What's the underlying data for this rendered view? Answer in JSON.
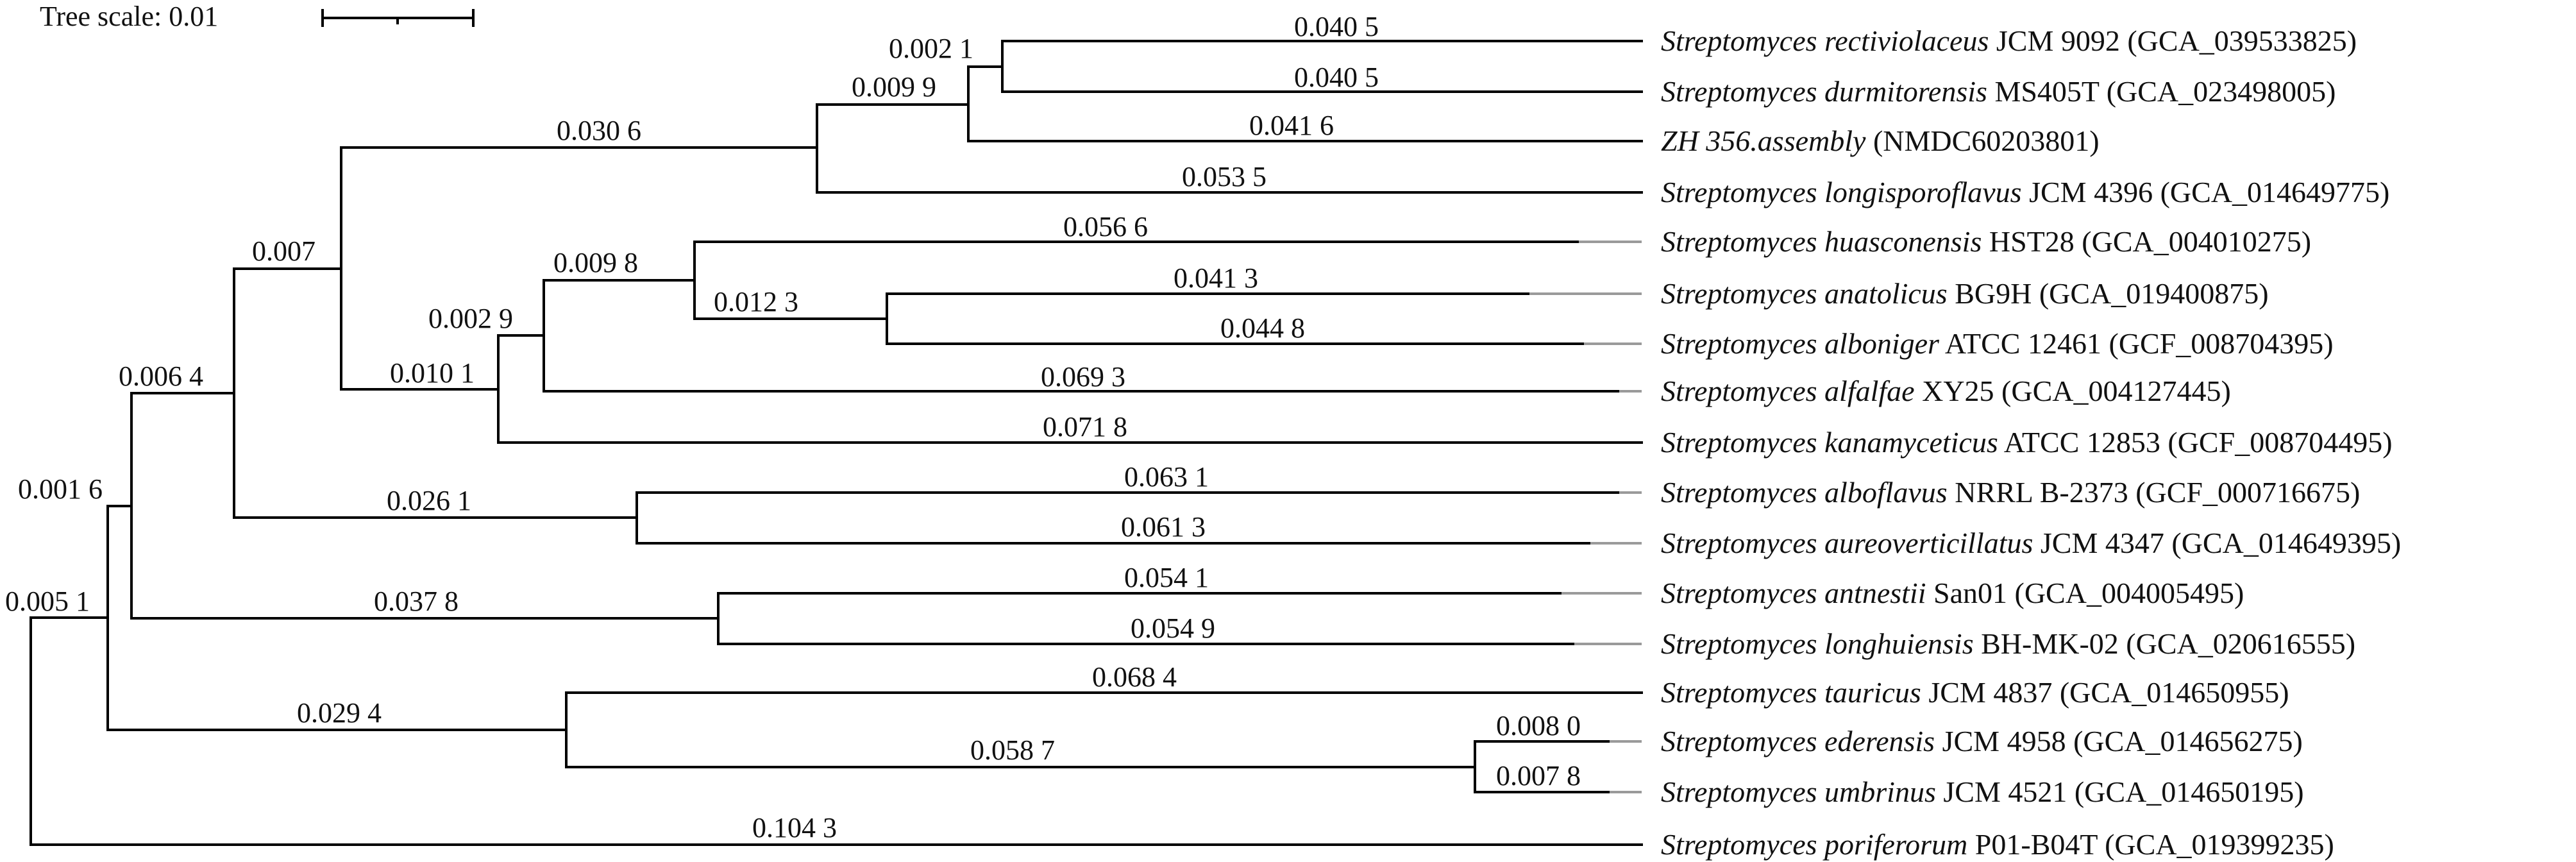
{
  "scale": {
    "label": "Tree scale: 0.01"
  },
  "leaves": [
    {
      "genus": "Streptomyces",
      "species": "rectiviolaceus",
      "strain": "JCM 9092",
      "accession": "(GCA_039533825)"
    },
    {
      "genus": "Streptomyces",
      "species": "durmitorensis",
      "strain": "MS405T",
      "accession": "(GCA_023498005)"
    },
    {
      "genus": "",
      "species": "ZH 356.assembly",
      "strain": "",
      "accession": "(NMDC60203801)"
    },
    {
      "genus": "Streptomyces",
      "species": "longisporoflavus",
      "strain": "JCM 4396",
      "accession": "(GCA_014649775)"
    },
    {
      "genus": "Streptomyces",
      "species": "huasconensis",
      "strain": "HST28",
      "accession": "(GCA_004010275)"
    },
    {
      "genus": "Streptomyces",
      "species": "anatolicus",
      "strain": "BG9H",
      "accession": "(GCA_019400875)"
    },
    {
      "genus": "Streptomyces",
      "species": "alboniger",
      "strain": "ATCC 12461",
      "accession": "(GCF_008704395)"
    },
    {
      "genus": "Streptomyces",
      "species": "alfalfae",
      "strain": "XY25",
      "accession": "(GCA_004127445)"
    },
    {
      "genus": "Streptomyces",
      "species": "kanamyceticus",
      "strain": "ATCC 12853",
      "accession": "(GCF_008704495)"
    },
    {
      "genus": "Streptomyces",
      "species": "alboflavus",
      "strain": "NRRL B-2373",
      "accession": "(GCF_000716675)"
    },
    {
      "genus": "Streptomyces",
      "species": "aureoverticillatus",
      "strain": "JCM 4347",
      "accession": "(GCA_014649395)"
    },
    {
      "genus": "Streptomyces",
      "species": "antnestii",
      "strain": "San01",
      "accession": "(GCA_004005495)"
    },
    {
      "genus": "Streptomyces",
      "species": "longhuiensis",
      "strain": "BH-MK-02",
      "accession": "(GCA_020616555)"
    },
    {
      "genus": "Streptomyces",
      "species": "tauricus",
      "strain": "JCM 4837",
      "accession": "(GCA_014650955)"
    },
    {
      "genus": "Streptomyces",
      "species": "ederensis",
      "strain": "JCM 4958",
      "accession": "(GCA_014656275)"
    },
    {
      "genus": "Streptomyces",
      "species": "umbrinus",
      "strain": "JCM 4521",
      "accession": "(GCA_014650195)"
    },
    {
      "genus": "Streptomyces",
      "species": "poriferorum",
      "strain": "P01-B04T",
      "accession": "(GCA_019399235)"
    }
  ],
  "branch_lengths": {
    "leaf_rectiviolaceus": "0.040 5",
    "leaf_durmitorensis": "0.040 5",
    "node_rect_durm": "0.002 1",
    "leaf_zh356": "0.041 6",
    "node_clade3": "0.009 9",
    "leaf_longisporoflavus": "0.053 5",
    "node_clade4": "0.030 6",
    "leaf_huasconensis": "0.056 6",
    "leaf_anatolicus": "0.041 3",
    "leaf_alboniger": "0.044 8",
    "node_anat_albo": "0.012 3",
    "node_huas_group": "0.009 8",
    "leaf_alfalfae": "0.069 3",
    "node_alfalfae_group": "0.002 9",
    "leaf_kanamyceticus": "0.071 8",
    "node_kanamyceticus_group": "0.010 1",
    "node_big_clade": "0.007",
    "leaf_alboflavus": "0.063 1",
    "leaf_aureoverticillatus": "0.061 3",
    "node_alboflavus_pair": "0.026 1",
    "node_upper_clade": "0.006 4",
    "leaf_antnestii": "0.054 1",
    "leaf_longhuiensis": "0.054 9",
    "node_antnestii_pair": "0.037 8",
    "node_ingroup_upper": "0.001 6",
    "leaf_tauricus": "0.068 4",
    "leaf_ederensis": "0.008 0",
    "leaf_umbrinus": "0.007 8",
    "node_ederensis_pair": "0.058 7",
    "node_tauricus_group": "0.029 4",
    "node_ingroup": "0.005 1",
    "leaf_poriferorum": "0.104 3"
  }
}
